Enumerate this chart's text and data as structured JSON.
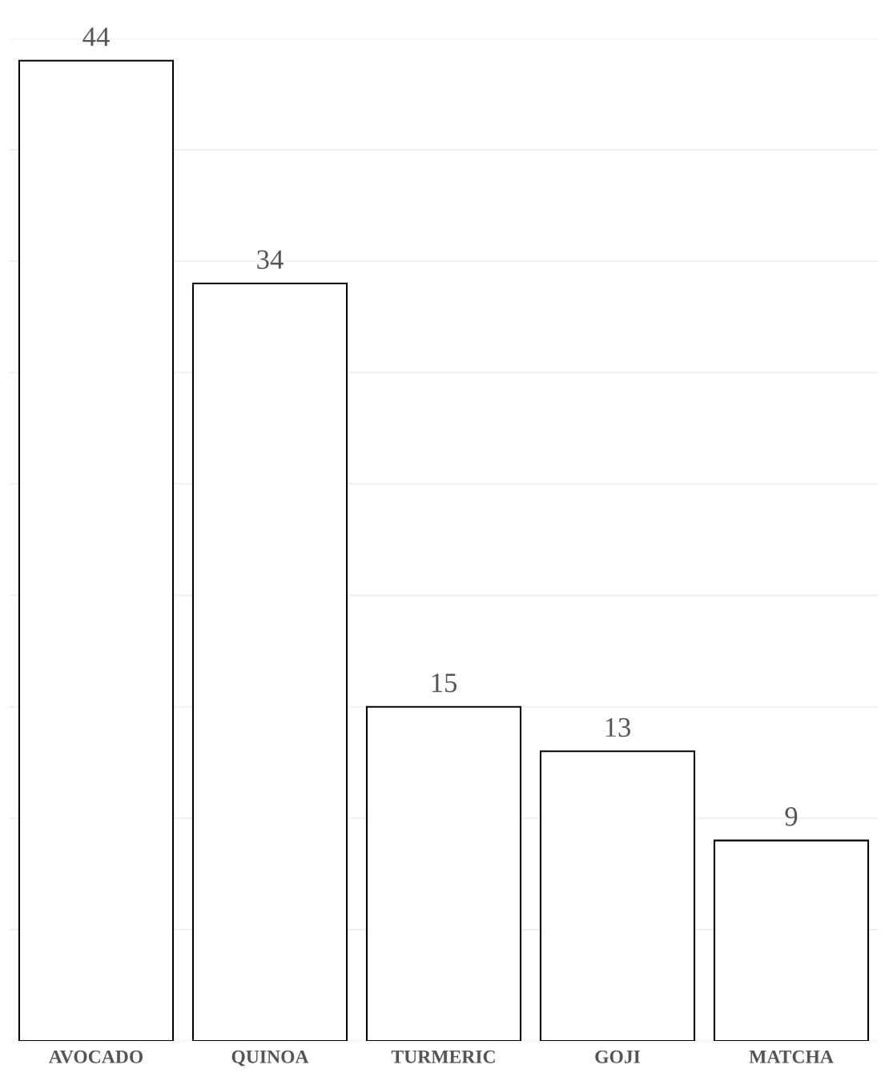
{
  "chart_data": {
    "type": "bar",
    "categories": [
      "AVOCADO",
      "QUINOA",
      "TURMERIC",
      "GOJI",
      "MATCHA"
    ],
    "values": [
      44,
      34,
      15,
      13,
      9
    ],
    "color": "#ffffff",
    "ylim": [
      0,
      45
    ],
    "yticks": [
      {
        "value": 0,
        "label": null
      },
      {
        "value": 5,
        "label": null
      },
      {
        "value": 10,
        "label": null
      },
      {
        "value": 15,
        "label": null
      },
      {
        "value": 20,
        "label": null
      },
      {
        "value": 25,
        "label": null
      },
      {
        "value": 30,
        "label": null
      },
      {
        "value": 35,
        "label": null
      },
      {
        "value": 40,
        "label": null
      },
      {
        "value": 45,
        "label": null
      }
    ],
    "grid": "y",
    "tick_labels": "x",
    "data_labels": true
  }
}
